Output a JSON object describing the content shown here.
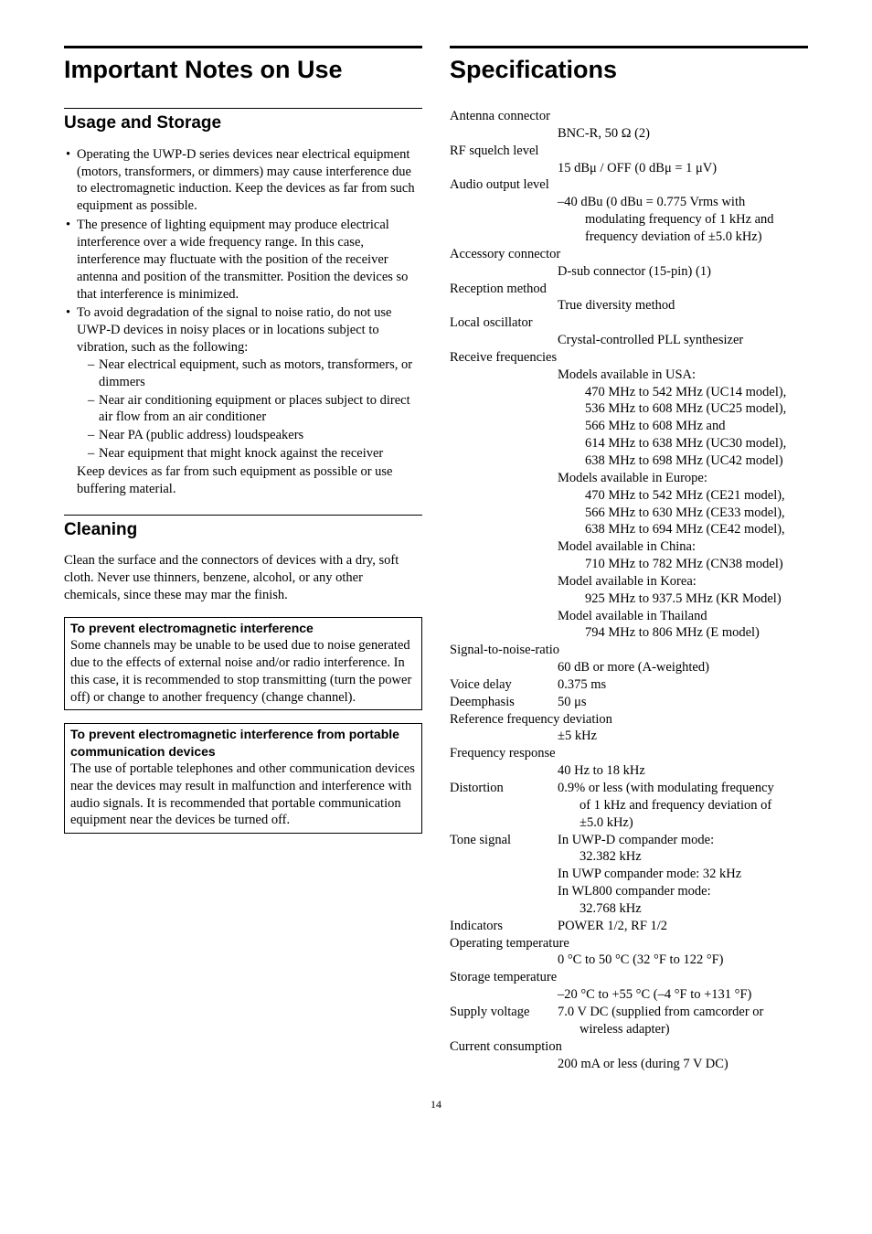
{
  "page_number": "14",
  "left": {
    "title": "Important Notes on Use",
    "s1_title": "Usage and Storage",
    "b1": "Operating the UWP-D series devices near electrical equipment (motors, transformers, or dimmers) may cause interference due to electromagnetic induction. Keep the devices as far from such equipment as possible.",
    "b2": "The presence of lighting equipment may produce electrical interference over a wide frequency range. In this case, interference may fluctuate with the position of the receiver antenna and position of the transmitter. Position the devices so that interference is minimized.",
    "b3": "To avoid degradation of the signal to noise ratio, do not use UWP-D devices in noisy places or in locations subject to vibration, such as the following:",
    "d1": "Near electrical equipment, such as motors, transformers, or dimmers",
    "d2": "Near air conditioning equipment or places subject to direct air flow from an air conditioner",
    "d3": "Near PA (public address) loudspeakers",
    "d4": "Near equipment that might knock against the receiver",
    "b3_tail": "Keep devices as far from such equipment as possible or use buffering material.",
    "s2_title": "Cleaning",
    "s2_body": "Clean the surface and the connectors of devices with a dry, soft cloth. Never use thinners, benzene, alcohol, or any other chemicals, since these may mar the finish.",
    "box1_title": "To prevent electromagnetic interference",
    "box1_body": "Some channels may be unable to be used due to noise generated due to the effects of external noise and/or radio interference. In this case, it is recommended to stop transmitting (turn the power off) or change to another frequency (change channel).",
    "box2_title": "To prevent electromagnetic interference from portable communication devices",
    "box2_body": "The use of portable telephones and other communication devices near the devices may result in malfunction and interference with audio signals. It is recommended that portable communication equipment near the devices be turned off."
  },
  "right": {
    "title": "Specifications",
    "specs": {
      "antenna_conn_l": "Antenna connector",
      "antenna_conn_v": "BNC-R, 50 Ω (2)",
      "rf_sq_l": "RF squelch level",
      "rf_sq_v": "15 dBμ / OFF (0 dBμ = 1 μV)",
      "audio_out_l": "Audio output level",
      "audio_out_v1": "–40 dBu (0 dBu = 0.775 Vrms with",
      "audio_out_v2": "modulating frequency of 1 kHz and",
      "audio_out_v3": "frequency deviation of ±5.0 kHz)",
      "acc_conn_l": "Accessory connector",
      "acc_conn_v": "D-sub connector (15-pin) (1)",
      "recep_l": "Reception method",
      "recep_v": "True diversity method",
      "lo_l": "Local oscillator",
      "lo_v": "Crystal-controlled PLL synthesizer",
      "rf_l": "Receive frequencies",
      "rf_usa": "Models available in USA:",
      "rf_usa_1": "470 MHz to 542 MHz (UC14 model),",
      "rf_usa_2": "536 MHz to 608 MHz (UC25 model),",
      "rf_usa_3": "566 MHz to 608 MHz and",
      "rf_usa_4": "614 MHz to 638 MHz (UC30 model),",
      "rf_usa_5": "638 MHz to 698 MHz (UC42 model)",
      "rf_eu": "Models available in Europe:",
      "rf_eu_1": "470 MHz to 542 MHz (CE21 model),",
      "rf_eu_2": "566 MHz to 630 MHz (CE33 model),",
      "rf_eu_3": "638 MHz to 694 MHz (CE42 model),",
      "rf_cn": "Model available in China:",
      "rf_cn_1": "710 MHz to 782 MHz (CN38 model)",
      "rf_kr": "Model available in Korea:",
      "rf_kr_1": "925 MHz to 937.5 MHz (KR Model)",
      "rf_th": "Model available in Thailand",
      "rf_th_1": "794 MHz to 806 MHz (E model)",
      "snr_l": "Signal-to-noise-ratio",
      "snr_v": "60 dB or more (A-weighted)",
      "voice_l": "Voice delay",
      "voice_v": "0.375 ms",
      "deemph_l": "Deemphasis",
      "deemph_v": "50 μs",
      "reffreq_l": "Reference frequency deviation",
      "reffreq_v": "±5 kHz",
      "freqresp_l": "Frequency response",
      "freqresp_v": "40 Hz to 18 kHz",
      "dist_l": "Distortion",
      "dist_v1": "0.9% or less (with modulating frequency",
      "dist_v2": "of 1 kHz and frequency deviation of",
      "dist_v3": "±5.0 kHz)",
      "tone_l": "Tone signal",
      "tone_v1": "In UWP-D compander mode:",
      "tone_v2": "32.382 kHz",
      "tone_v3": "In UWP compander mode: 32 kHz",
      "tone_v4": "In WL800 compander mode:",
      "tone_v5": "32.768 kHz",
      "ind_l": "Indicators",
      "ind_v": "POWER 1/2, RF 1/2",
      "optemp_l": "Operating temperature",
      "optemp_v": "0 °C to 50 °C (32 °F to 122 °F)",
      "sttemp_l": "Storage temperature",
      "sttemp_v": "–20 °C to +55 °C (–4 °F to +131 °F)",
      "supply_l": "Supply voltage",
      "supply_v1": "7.0 V DC (supplied from camcorder or",
      "supply_v2": "wireless adapter)",
      "curr_l": "Current consumption",
      "curr_v": "200 mA or less (during 7 V DC)"
    }
  }
}
